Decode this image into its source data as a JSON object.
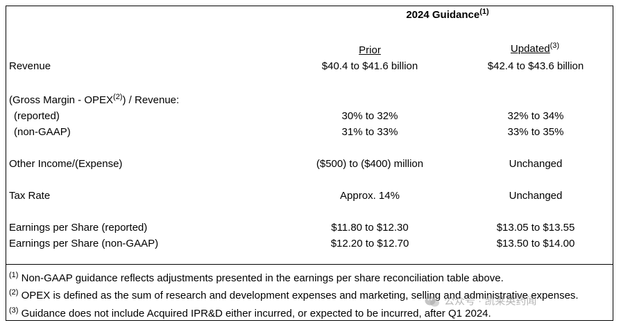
{
  "header": {
    "title": "2024 Guidance",
    "title_sup": "(1)",
    "col_prior": "Prior",
    "col_updated": "Updated",
    "col_updated_sup": "(3)"
  },
  "rows": {
    "revenue": {
      "label": "Revenue",
      "prior": "$40.4 to $41.6 billion",
      "updated": "$42.4 to $43.6 billion"
    },
    "gm_label_pre": "(Gross Margin - OPEX",
    "gm_label_sup": "(2)",
    "gm_label_post": ") / Revenue:",
    "gm_reported": {
      "label": "(reported)",
      "prior": "30% to 32%",
      "updated": "32% to 34%"
    },
    "gm_nongaap": {
      "label": "(non-GAAP)",
      "prior": "31% to 33%",
      "updated": "33% to 35%"
    },
    "other_income": {
      "label": "Other Income/(Expense)",
      "prior": "($500) to ($400) million",
      "updated": "Unchanged"
    },
    "tax_rate": {
      "label": "Tax Rate",
      "prior": "Approx. 14%",
      "updated": "Unchanged"
    },
    "eps_reported": {
      "label": "Earnings per Share (reported)",
      "prior": "$11.80 to $12.30",
      "updated": "$13.05 to $13.55"
    },
    "eps_nongaap": {
      "label": "Earnings per Share (non-GAAP)",
      "prior": "$12.20 to $12.70",
      "updated": "$13.50 to $14.00"
    }
  },
  "footnotes": [
    {
      "mark": "(1)",
      "text": " Non-GAAP guidance reflects adjustments presented in the earnings per share reconciliation table above."
    },
    {
      "mark": "(2)",
      "text": " OPEX is defined as the sum of research and development expenses and marketing, selling and administrative expenses."
    },
    {
      "mark": "(3)",
      "text": " Guidance does not include Acquired IPR&D either incurred, or expected to be incurred, after Q1 2024."
    }
  ],
  "watermark": {
    "text": "公众号 · 凯莱英药闻",
    "icon": "wechat-icon"
  }
}
